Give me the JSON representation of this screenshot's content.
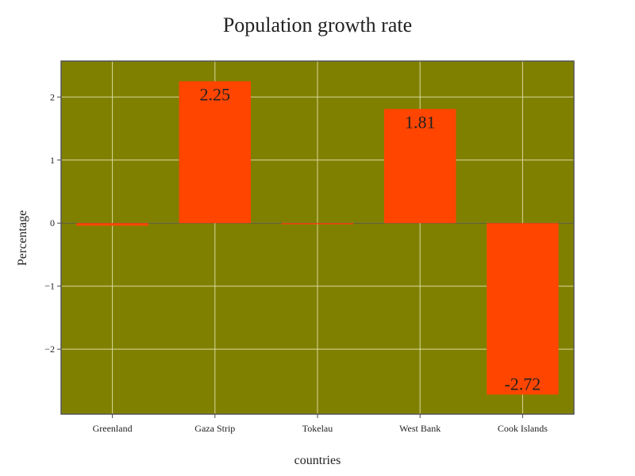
{
  "chart_data": {
    "type": "bar",
    "title": "Population growth rate",
    "xlabel": "countries",
    "ylabel": "Percentage",
    "categories": [
      "Greenland",
      "Gaza Strip",
      "Tokelau",
      "West Bank",
      "Cook Islands"
    ],
    "values": [
      -0.04,
      2.25,
      -0.01,
      1.81,
      -2.72
    ],
    "data_labels": [
      "",
      "2.25",
      "",
      "1.81",
      "-2.72"
    ],
    "yticks": [
      -2,
      -1,
      0,
      1,
      2
    ],
    "ytick_labels": [
      "−2",
      "−1",
      "0",
      "1",
      "2"
    ],
    "ylim": [
      -3.03,
      2.57
    ],
    "grid": true,
    "colors": {
      "plot_background": "#808000",
      "bar": "#ff4500",
      "grid": "#d9d9a0",
      "frame": "#555555"
    }
  }
}
